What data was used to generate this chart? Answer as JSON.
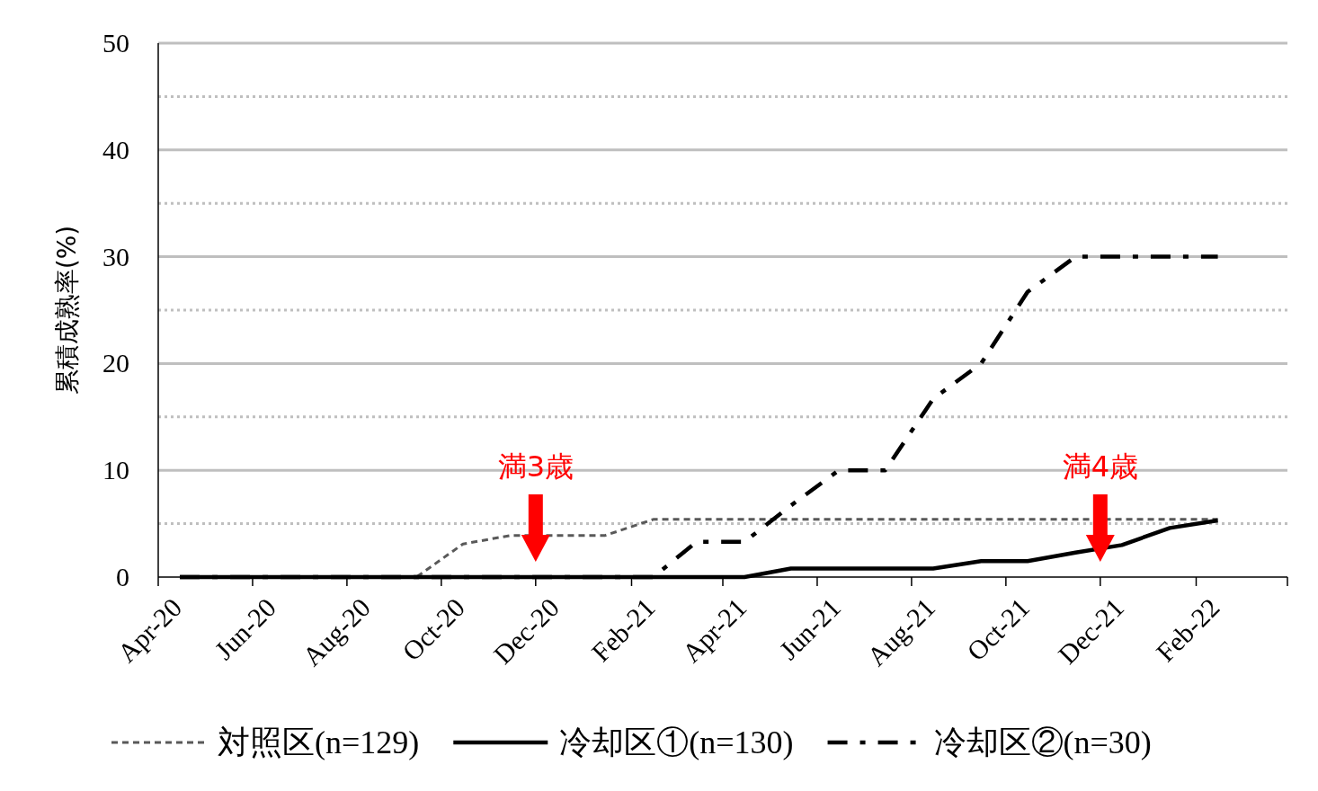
{
  "chart_data": {
    "type": "line",
    "ylabel": "累積成熟率(%)",
    "x": [
      "2020-04-15",
      "2020-05-15",
      "2020-06-15",
      "2020-07-15",
      "2020-08-15",
      "2020-09-15",
      "2020-10-15",
      "2020-11-15",
      "2020-12-15",
      "2021-01-15",
      "2021-02-15",
      "2021-03-15",
      "2021-04-15",
      "2021-05-15",
      "2021-06-15",
      "2021-07-15",
      "2021-08-15",
      "2021-09-15",
      "2021-10-15",
      "2021-11-15",
      "2021-12-15",
      "2022-01-15",
      "2022-02-15"
    ],
    "series": [
      {
        "name": "対照区(n=129)",
        "color": "#595959",
        "line_style": "dashed",
        "values": [
          0,
          0,
          0,
          0,
          0,
          0,
          3.1,
          3.9,
          3.9,
          3.9,
          5.4,
          5.4,
          5.4,
          5.4,
          5.4,
          5.4,
          5.4,
          5.4,
          5.4,
          5.4,
          5.4,
          5.4,
          5.4
        ]
      },
      {
        "name": "冷却区①(n=130)",
        "color": "#000000",
        "line_style": "solid",
        "values": [
          0,
          0,
          0,
          0,
          0,
          0,
          0,
          0,
          0,
          0,
          0,
          0,
          0,
          0.8,
          0.8,
          0.8,
          0.8,
          1.5,
          1.5,
          2.3,
          3.0,
          4.6,
          5.3
        ]
      },
      {
        "name": "冷却区②(n=30)",
        "color": "#000000",
        "line_style": "dashdot",
        "values": [
          0,
          0,
          0,
          0,
          0,
          0,
          0,
          0,
          0,
          0,
          0,
          3.3,
          3.3,
          6.7,
          10,
          10,
          16.7,
          20,
          26.7,
          30,
          30,
          30,
          30
        ]
      }
    ],
    "xlim": [
      "2020-04-01",
      "2022-04-01"
    ],
    "xticks": [
      {
        "value": "2020-04-01",
        "label": "Apr-20"
      },
      {
        "value": "2020-06-01",
        "label": "Jun-20"
      },
      {
        "value": "2020-08-01",
        "label": "Aug-20"
      },
      {
        "value": "2020-10-01",
        "label": "Oct-20"
      },
      {
        "value": "2020-12-01",
        "label": "Dec-20"
      },
      {
        "value": "2021-02-01",
        "label": "Feb-21"
      },
      {
        "value": "2021-04-01",
        "label": "Apr-21"
      },
      {
        "value": "2021-06-01",
        "label": "Jun-21"
      },
      {
        "value": "2021-08-01",
        "label": "Aug-21"
      },
      {
        "value": "2021-10-01",
        "label": "Oct-21"
      },
      {
        "value": "2021-12-01",
        "label": "Dec-21"
      },
      {
        "value": "2022-02-01",
        "label": "Feb-22"
      },
      {
        "value": "2022-04-01",
        "label": null
      }
    ],
    "ylim": [
      0,
      50
    ],
    "yticks": [
      0,
      10,
      20,
      30,
      40,
      50
    ],
    "grid": "y",
    "ref_lines": [
      {
        "axis": "y",
        "value": 5,
        "color": "#bfbfbf",
        "line_style": "dotted"
      },
      {
        "axis": "y",
        "value": 15,
        "color": "#bfbfbf",
        "line_style": "dotted"
      },
      {
        "axis": "y",
        "value": 25,
        "color": "#bfbfbf",
        "line_style": "dotted"
      },
      {
        "axis": "y",
        "value": 35,
        "color": "#bfbfbf",
        "line_style": "dotted"
      },
      {
        "axis": "y",
        "value": 45,
        "color": "#bfbfbf",
        "line_style": "dotted"
      },
      {
        "axis": "x",
        "value": "2020-12-01",
        "label": "満3歳",
        "color": "#ff0000"
      },
      {
        "axis": "x",
        "value": "2021-12-01",
        "label": "満4歳",
        "color": "#ff0000"
      }
    ],
    "legend": "bottom",
    "marker": "none"
  }
}
